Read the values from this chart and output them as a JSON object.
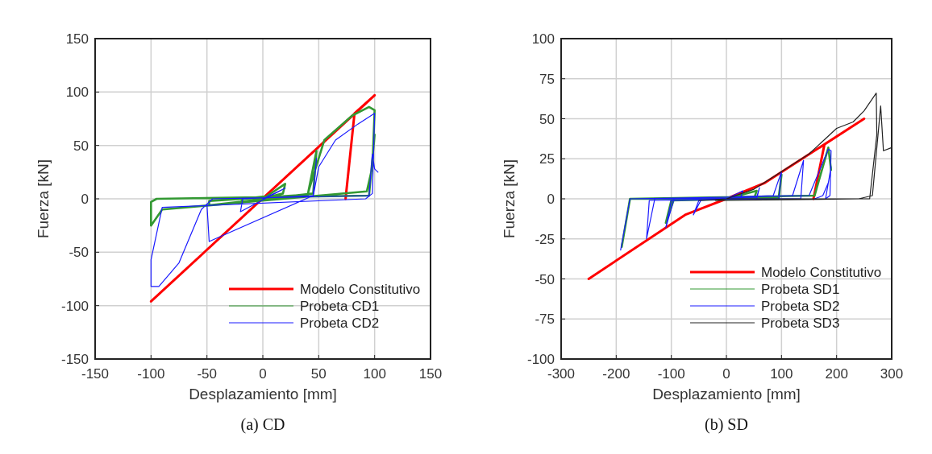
{
  "chart_data": [
    {
      "type": "line",
      "title": "(a) CD",
      "xlabel": "Desplazamiento [mm]",
      "ylabel": "Fuerza [kN]",
      "xlim": [
        -150,
        150
      ],
      "ylim": [
        -150,
        150
      ],
      "xticks": [
        -150,
        -100,
        -50,
        0,
        50,
        100,
        150
      ],
      "yticks": [
        -150,
        -100,
        -50,
        0,
        50,
        100,
        150
      ],
      "grid": true,
      "legend": "bottom right",
      "series": [
        {
          "name": "Modelo Constitutivo",
          "color": "#ff0000",
          "x": [
            -100,
            100,
            82,
            74
          ],
          "values": [
            -96,
            97,
            80,
            0
          ]
        },
        {
          "name": "Probeta CD1",
          "color": "#339933",
          "x": [
            0,
            20,
            18,
            10,
            -20,
            -18,
            0,
            40,
            48,
            45,
            -48,
            -48,
            40,
            55,
            80,
            95,
            100,
            98,
            93,
            -90,
            -100,
            -100,
            -95,
            95,
            100
          ],
          "values": [
            0,
            14,
            5,
            3,
            -4,
            0,
            2,
            3,
            45,
            5,
            -6,
            -2,
            4,
            55,
            78,
            86,
            83,
            30,
            7,
            -10,
            -25,
            -3,
            0,
            3,
            60
          ]
        },
        {
          "name": "Probeta CD2",
          "color": "#1a1aff",
          "x": [
            0,
            20,
            -20,
            -18,
            45,
            48,
            45,
            -48,
            -50,
            -45,
            45,
            50,
            65,
            85,
            100,
            98,
            92,
            -90,
            -100,
            -100,
            -93,
            -75,
            -55,
            -45,
            95,
            98,
            100,
            103
          ],
          "values": [
            0,
            10,
            -12,
            0,
            3,
            38,
            3,
            -40,
            -5,
            0,
            2,
            30,
            55,
            70,
            80,
            5,
            0,
            -8,
            -57,
            -82,
            -82,
            -60,
            -10,
            0,
            3,
            42,
            28,
            25
          ]
        }
      ]
    },
    {
      "type": "line",
      "title": "(b) SD",
      "xlabel": "Desplazamiento [mm]",
      "ylabel": "Fuerza [kN]",
      "xlim": [
        -300,
        300
      ],
      "ylim": [
        -100,
        100
      ],
      "xticks": [
        -300,
        -200,
        -100,
        0,
        100,
        200,
        300
      ],
      "yticks": [
        -100,
        -75,
        -50,
        -25,
        0,
        25,
        50,
        75,
        100
      ],
      "grid": true,
      "legend": "bottom right",
      "series": [
        {
          "name": "Modelo Constitutivo",
          "color": "#ff0000",
          "x": [
            -250,
            -75,
            0,
            70,
            250,
            178,
            158
          ],
          "values": [
            -50,
            -10,
            0,
            10,
            50,
            34,
            0
          ]
        },
        {
          "name": "Probeta SD1",
          "color": "#339933",
          "x": [
            0,
            55,
            50,
            -100,
            -110,
            -95,
            95,
            100,
            95,
            -175,
            -190,
            -175,
            160,
            185,
            190
          ],
          "values": [
            0,
            5,
            0,
            -1,
            -15,
            0,
            1,
            15,
            0,
            0,
            -30,
            0,
            2,
            32,
            18
          ]
        },
        {
          "name": "Probeta SD2",
          "color": "#1a1aff",
          "x": [
            0,
            30,
            25,
            -50,
            -60,
            -45,
            55,
            60,
            55,
            -100,
            -110,
            -95,
            85,
            100,
            95,
            -140,
            -145,
            -130,
            120,
            140,
            135,
            -175,
            -192,
            -175,
            150,
            185,
            190,
            188,
            180,
            190,
            185,
            175,
            160
          ],
          "values": [
            0,
            5,
            0,
            -1,
            -10,
            0,
            1,
            7,
            0,
            -1,
            -18,
            0,
            2,
            17,
            0,
            -1,
            -25,
            0,
            2,
            24,
            0,
            0,
            -32,
            0,
            2,
            31,
            30,
            2,
            0,
            20,
            10,
            2,
            0
          ]
        },
        {
          "name": "Probeta SD3",
          "color": "#222222",
          "x": [
            -50,
            0,
            50,
            100,
            150,
            200,
            230,
            250,
            272,
            273,
            260,
            240,
            0,
            -20,
            0,
            240,
            265,
            280,
            285,
            300
          ],
          "values": [
            -1,
            0,
            6,
            17,
            28,
            44,
            48,
            55,
            66,
            40,
            0,
            0,
            -1,
            -1,
            0,
            0,
            2,
            58,
            30,
            32
          ]
        }
      ]
    }
  ]
}
